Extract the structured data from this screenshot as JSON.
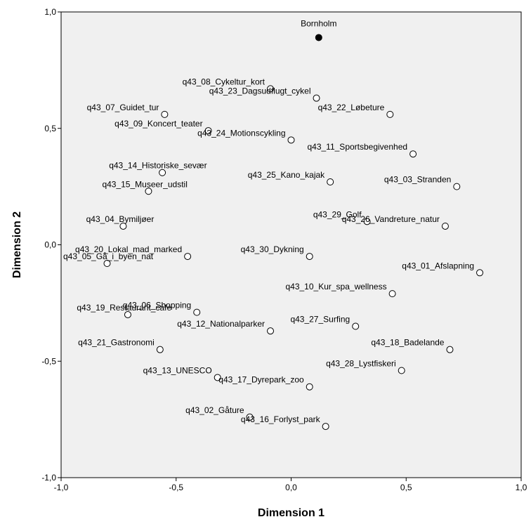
{
  "chart_data": {
    "type": "scatter",
    "xlabel": "Dimension 1",
    "ylabel": "Dimension 2",
    "xlim": [
      -1.0,
      1.0
    ],
    "ylim": [
      -1.0,
      1.0
    ],
    "xticks": [
      "-1,0",
      "-0,5",
      "0,0",
      "0,5",
      "1,0"
    ],
    "yticks": [
      "-1,0",
      "-0,5",
      "0,0",
      "0,5",
      "1,0"
    ],
    "grid": false,
    "colors": {
      "background": "#f0f0f0",
      "filled_marker": "#000000",
      "open_marker_fill": "#ffffff"
    },
    "points": [
      {
        "label": "Bornholm",
        "x": 0.12,
        "y": 0.89,
        "filled": true
      },
      {
        "label": "q43_08_Cykeltur_kort",
        "x": -0.09,
        "y": 0.67
      },
      {
        "label": "q43_23_Dagsudflugt_cykel",
        "x": 0.11,
        "y": 0.63
      },
      {
        "label": "q43_07_Guidet_tur",
        "x": -0.55,
        "y": 0.56
      },
      {
        "label": "q43_22_Løbeture",
        "x": 0.43,
        "y": 0.56
      },
      {
        "label": "q43_09_Koncert_teater",
        "x": -0.36,
        "y": 0.49
      },
      {
        "label": "q43_24_Motionscykling",
        "x": 0.0,
        "y": 0.45
      },
      {
        "label": "q43_11_Sportsbegivenhed",
        "x": 0.53,
        "y": 0.39
      },
      {
        "label": "q43_14_Historiske_sevær",
        "x": -0.56,
        "y": 0.31
      },
      {
        "label": "q43_25_Kano_kajak",
        "x": 0.17,
        "y": 0.27
      },
      {
        "label": "q43_03_Stranden",
        "x": 0.72,
        "y": 0.25
      },
      {
        "label": "q43_15_Museer_udstil",
        "x": -0.62,
        "y": 0.23
      },
      {
        "label": "q43_29_Golf",
        "x": 0.33,
        "y": 0.1
      },
      {
        "label": "q43_04_Bymiljøer",
        "x": -0.73,
        "y": 0.08
      },
      {
        "label": "q43_26_Vandreture_natur",
        "x": 0.67,
        "y": 0.08
      },
      {
        "label": "q43_20_Lokal_mad_marked",
        "x": -0.45,
        "y": -0.05
      },
      {
        "label": "q43_30_Dykning",
        "x": 0.08,
        "y": -0.05
      },
      {
        "label": "q43_05_Gå_i_byen_nat",
        "x": -0.8,
        "y": -0.08
      },
      {
        "label": "q43_01_Afslapning",
        "x": 0.82,
        "y": -0.12
      },
      {
        "label": "q43_10_Kur_spa_wellness",
        "x": 0.44,
        "y": -0.21
      },
      {
        "label": "q43_06_Shopping",
        "x": -0.41,
        "y": -0.29
      },
      {
        "label": "q43_19_Restaurant_cafe",
        "x": -0.71,
        "y": -0.3
      },
      {
        "label": "q43_27_Surfing",
        "x": 0.28,
        "y": -0.35
      },
      {
        "label": "q43_12_Nationalparker",
        "x": -0.09,
        "y": -0.37
      },
      {
        "label": "q43_18_Badelande",
        "x": 0.69,
        "y": -0.45
      },
      {
        "label": "q43_21_Gastronomi",
        "x": -0.57,
        "y": -0.45
      },
      {
        "label": "q43_28_Lystfiskeri",
        "x": 0.48,
        "y": -0.54
      },
      {
        "label": "q43_13_UNESCO",
        "x": -0.32,
        "y": -0.57
      },
      {
        "label": "q43_17_Dyrepark_zoo",
        "x": 0.08,
        "y": -0.61
      },
      {
        "label": "q43_02_Gåture",
        "x": -0.18,
        "y": -0.74
      },
      {
        "label": "q43_16_Forlyst_park",
        "x": 0.15,
        "y": -0.78
      }
    ]
  }
}
